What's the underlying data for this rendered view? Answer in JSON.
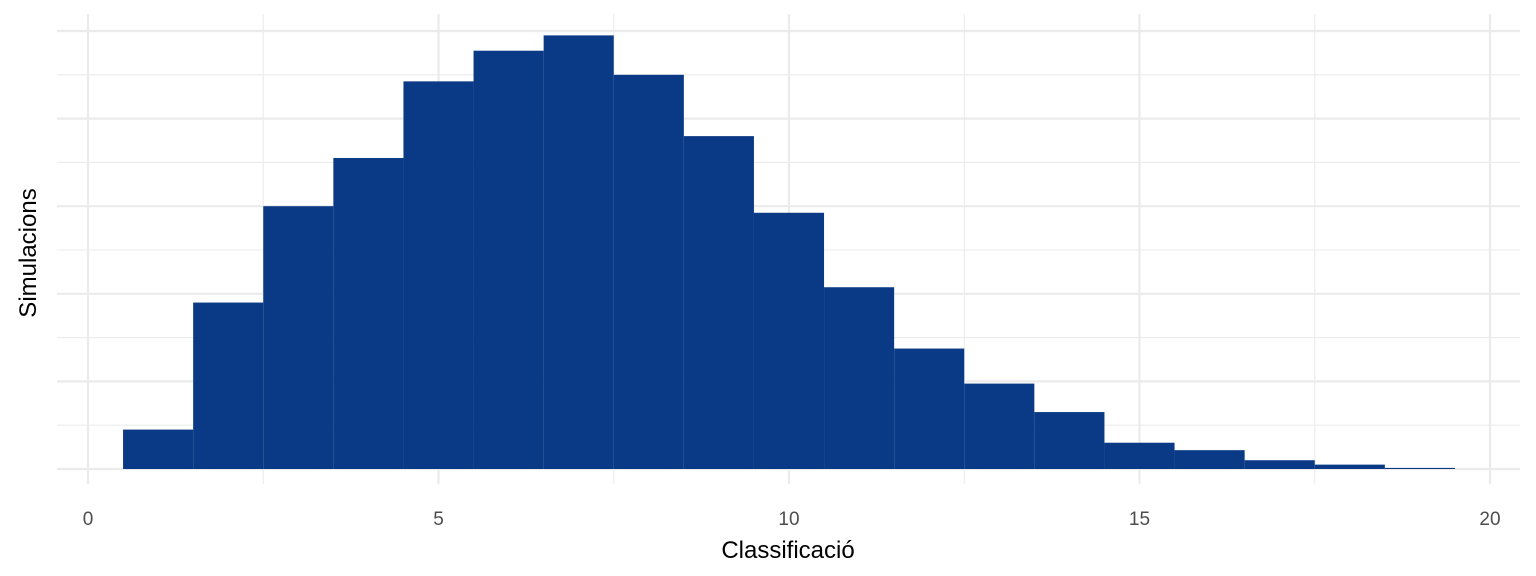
{
  "chart_data": {
    "type": "bar",
    "subtype": "histogram",
    "title": "",
    "xlabel": "Classificació",
    "ylabel": "Simulacions",
    "xlim": [
      0,
      20
    ],
    "x_ticks": [
      0,
      5,
      10,
      15,
      20
    ],
    "y_tick_labels_shown": false,
    "grid": true,
    "bar_color": "#0a3a85",
    "bin_width": 1,
    "x": [
      1,
      2,
      3,
      4,
      5,
      6,
      7,
      8,
      9,
      10,
      11,
      12,
      13,
      14,
      15,
      16,
      17,
      18,
      19
    ],
    "values": [
      9.0,
      38.0,
      60.0,
      71.0,
      88.5,
      95.5,
      99.0,
      90.0,
      76.0,
      58.5,
      41.5,
      27.5,
      19.5,
      13.0,
      6.0,
      4.3,
      2.0,
      1.0,
      0.25
    ],
    "value_note_unit": "relative (no y tick labels printed)",
    "ylim": [
      -3,
      103
    ]
  }
}
